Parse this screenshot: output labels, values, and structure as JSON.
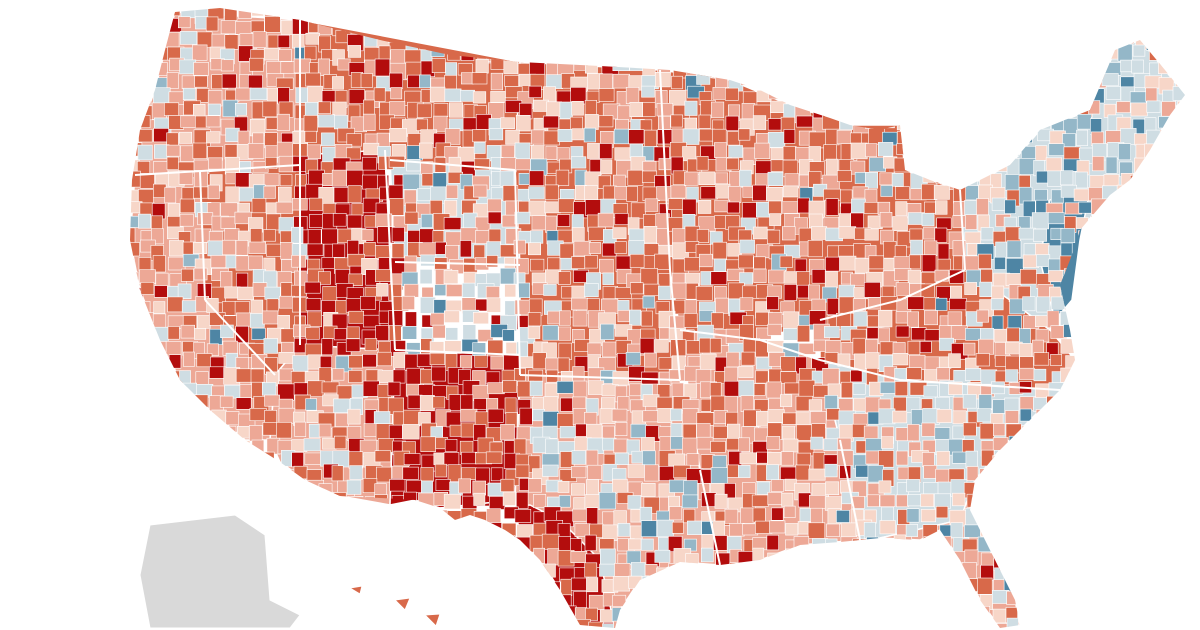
{
  "map": {
    "subject": "united-states-county-choropleth",
    "palette": {
      "dark_red": "#b30d0d",
      "red": "#d8694a",
      "light_red": "#eda896",
      "pale_red": "#f7d6c8",
      "pale_blue": "#cfdde3",
      "light_blue": "#94b7c8",
      "blue": "#4e85a4",
      "inactive": "#d9d9d9",
      "border": "#ffffff",
      "background": "#ffffff"
    },
    "regions": [
      {
        "name": "pacific-northwest",
        "shade": "light_red"
      },
      {
        "name": "california",
        "shade": "light_red"
      },
      {
        "name": "nevada",
        "shade": "red"
      },
      {
        "name": "utah",
        "shade": "dark_red"
      },
      {
        "name": "arizona",
        "shade": "light_red"
      },
      {
        "name": "idaho-montana-wyoming",
        "shade": "red"
      },
      {
        "name": "colorado",
        "shade": "pale_blue"
      },
      {
        "name": "new-mexico",
        "shade": "dark_red"
      },
      {
        "name": "great-plains",
        "shade": "red"
      },
      {
        "name": "texas",
        "shade": "light_red"
      },
      {
        "name": "west-texas",
        "shade": "dark_red"
      },
      {
        "name": "midwest",
        "shade": "red"
      },
      {
        "name": "south",
        "shade": "light_red"
      },
      {
        "name": "appalachia",
        "shade": "red"
      },
      {
        "name": "southeast",
        "shade": "pale_blue"
      },
      {
        "name": "northeast",
        "shade": "pale_blue"
      },
      {
        "name": "mid-atlantic",
        "shade": "blue"
      },
      {
        "name": "florida",
        "shade": "light_red"
      },
      {
        "name": "alaska",
        "shade": "inactive"
      },
      {
        "name": "hawaii",
        "shade": "red"
      }
    ]
  }
}
